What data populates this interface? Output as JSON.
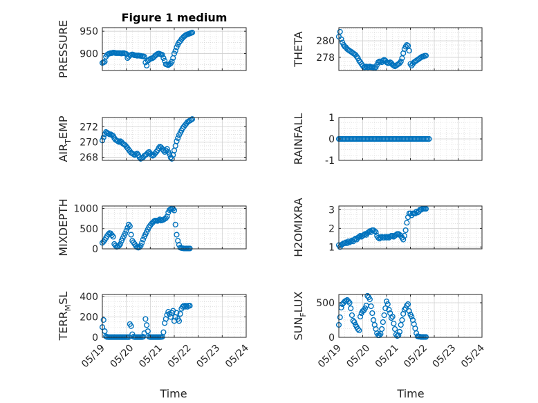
{
  "figure": {
    "title": "Figure 1 medium",
    "xlabel": "Time"
  },
  "style": {
    "marker_color": "#0072BD",
    "axis_color": "#262626",
    "grid_color": "#d0d0d0"
  },
  "x_ticks": [
    "05/19",
    "05/20",
    "05/21",
    "05/22",
    "05/23",
    "05/24"
  ],
  "chart_data": [
    {
      "type": "scatter",
      "ylabel": "PRESSURE",
      "ylim": [
        862,
        958
      ],
      "yticks": [
        900,
        950
      ],
      "x": [
        0.0,
        0.05,
        0.1,
        0.15,
        0.2,
        0.25,
        0.3,
        0.35,
        0.4,
        0.45,
        0.5,
        0.55,
        0.6,
        0.65,
        0.7,
        0.75,
        0.8,
        0.85,
        0.9,
        0.95,
        1.0,
        1.05,
        1.1,
        1.15,
        1.2,
        1.25,
        1.3,
        1.35,
        1.4,
        1.45,
        1.5,
        1.55,
        1.6,
        1.65,
        1.7,
        1.75,
        1.8,
        1.85,
        1.9,
        1.95,
        2.0,
        2.05,
        2.1,
        2.15,
        2.2,
        2.25,
        2.3,
        2.35,
        2.4,
        2.45,
        2.5,
        2.55,
        2.6,
        2.65,
        2.7,
        2.75,
        2.8,
        2.85,
        2.9,
        2.95,
        3.0,
        3.05,
        3.1,
        3.15,
        3.2,
        3.25,
        3.3,
        3.35,
        3.4,
        3.45,
        3.5,
        3.55,
        3.6,
        3.65,
        3.7,
        3.75
      ],
      "y": [
        879,
        880,
        882,
        893,
        897,
        899,
        900,
        901,
        901,
        902,
        902,
        901,
        901,
        901,
        901,
        901,
        900,
        901,
        901,
        900,
        899,
        890,
        893,
        896,
        897,
        898,
        897,
        896,
        896,
        895,
        896,
        895,
        895,
        894,
        894,
        893,
        880,
        873,
        884,
        886,
        888,
        889,
        890,
        892,
        895,
        897,
        899,
        900,
        899,
        898,
        897,
        890,
        884,
        876,
        875,
        874,
        876,
        878,
        882,
        890,
        900,
        906,
        914,
        920,
        925,
        928,
        932,
        935,
        938,
        940,
        942,
        943,
        944,
        945,
        946,
        947
      ]
    },
    {
      "type": "scatter",
      "ylabel": "THETA",
      "ylim": [
        276.4,
        281.6
      ],
      "yticks": [
        278,
        280
      ],
      "x": [
        0.0,
        0.05,
        0.1,
        0.15,
        0.2,
        0.25,
        0.3,
        0.35,
        0.4,
        0.45,
        0.5,
        0.55,
        0.6,
        0.65,
        0.7,
        0.75,
        0.8,
        0.85,
        0.9,
        0.95,
        1.0,
        1.05,
        1.1,
        1.15,
        1.2,
        1.25,
        1.3,
        1.35,
        1.4,
        1.45,
        1.5,
        1.55,
        1.6,
        1.65,
        1.7,
        1.75,
        1.8,
        1.85,
        1.9,
        1.95,
        2.0,
        2.05,
        2.1,
        2.15,
        2.2,
        2.25,
        2.3,
        2.35,
        2.4,
        2.45,
        2.5,
        2.55,
        2.6,
        2.65,
        2.7,
        2.75,
        2.8,
        2.85,
        2.9,
        2.95,
        3.0,
        3.05,
        3.1,
        3.15,
        3.2,
        3.25,
        3.3,
        3.35,
        3.4,
        3.45,
        3.5,
        3.55,
        3.6,
        3.65
      ],
      "y": [
        280.5,
        281.1,
        280.2,
        279.8,
        279.5,
        279.3,
        279.2,
        279.0,
        278.9,
        278.8,
        278.7,
        278.6,
        278.5,
        278.4,
        278.3,
        278.1,
        277.9,
        277.6,
        277.4,
        277.2,
        277.0,
        276.8,
        276.8,
        276.9,
        276.8,
        276.8,
        276.9,
        276.8,
        276.8,
        276.8,
        276.7,
        276.8,
        277.1,
        277.4,
        277.5,
        277.5,
        277.4,
        277.6,
        277.7,
        277.6,
        277.4,
        277.3,
        277.3,
        277.4,
        277.3,
        277.1,
        277.0,
        276.9,
        277.0,
        277.1,
        277.2,
        277.3,
        277.5,
        277.9,
        278.5,
        279.0,
        279.3,
        279.5,
        279.4,
        278.8,
        277.2,
        277.0,
        277.2,
        277.4,
        277.5,
        277.6,
        277.7,
        277.8,
        277.9,
        278.0,
        278.1,
        278.1,
        278.2,
        278.2
      ]
    },
    {
      "type": "scatter",
      "ylabel": "AIR_TEMP",
      "ylim": [
        267.6,
        273.2
      ],
      "yticks": [
        268,
        270,
        272
      ],
      "x": [
        0.0,
        0.05,
        0.1,
        0.15,
        0.2,
        0.25,
        0.3,
        0.35,
        0.4,
        0.45,
        0.5,
        0.55,
        0.6,
        0.65,
        0.7,
        0.75,
        0.8,
        0.85,
        0.9,
        0.95,
        1.0,
        1.05,
        1.1,
        1.15,
        1.2,
        1.25,
        1.3,
        1.35,
        1.4,
        1.45,
        1.5,
        1.55,
        1.6,
        1.65,
        1.7,
        1.75,
        1.8,
        1.85,
        1.9,
        1.95,
        2.0,
        2.05,
        2.1,
        2.15,
        2.2,
        2.25,
        2.3,
        2.35,
        2.4,
        2.45,
        2.5,
        2.55,
        2.6,
        2.65,
        2.7,
        2.75,
        2.8,
        2.85,
        2.9,
        2.95,
        3.0,
        3.05,
        3.1,
        3.15,
        3.2,
        3.25,
        3.3,
        3.35,
        3.4,
        3.45,
        3.5,
        3.55,
        3.6,
        3.65,
        3.7,
        3.75
      ],
      "y": [
        270.2,
        270.6,
        271.0,
        271.3,
        271.2,
        271.1,
        271.0,
        271.0,
        270.9,
        270.8,
        270.5,
        270.3,
        270.2,
        270.1,
        270.0,
        270.1,
        270.0,
        269.8,
        269.7,
        269.6,
        269.4,
        269.2,
        269.0,
        268.8,
        268.6,
        268.5,
        268.4,
        268.3,
        268.4,
        268.5,
        268.3,
        268.0,
        267.8,
        267.9,
        268.0,
        268.2,
        268.3,
        268.4,
        268.6,
        268.7,
        268.5,
        268.3,
        268.2,
        268.3,
        268.5,
        268.7,
        268.9,
        269.2,
        269.4,
        269.3,
        269.1,
        268.9,
        268.7,
        268.9,
        269.1,
        268.7,
        268.4,
        268.0,
        267.8,
        268.3,
        268.9,
        269.5,
        270.1,
        270.5,
        270.9,
        271.2,
        271.5,
        271.8,
        272.0,
        272.2,
        272.4,
        272.6,
        272.7,
        272.8,
        272.9,
        273.0
      ]
    },
    {
      "type": "scatter",
      "ylabel": "RAINFALL",
      "ylim": [
        -1,
        1
      ],
      "yticks": [
        -1,
        0,
        1
      ],
      "x": [
        0.0,
        0.06,
        0.12,
        0.18,
        0.24,
        0.3,
        0.36,
        0.42,
        0.48,
        0.54,
        0.6,
        0.66,
        0.72,
        0.78,
        0.84,
        0.9,
        0.96,
        1.02,
        1.08,
        1.14,
        1.2,
        1.26,
        1.32,
        1.38,
        1.44,
        1.5,
        1.56,
        1.62,
        1.68,
        1.74,
        1.8,
        1.86,
        1.92,
        1.98,
        2.04,
        2.1,
        2.16,
        2.22,
        2.28,
        2.34,
        2.4,
        2.46,
        2.52,
        2.58,
        2.64,
        2.7,
        2.76,
        2.82,
        2.88,
        2.94,
        3.0,
        3.06,
        3.12,
        3.18,
        3.24,
        3.3,
        3.36,
        3.42,
        3.48,
        3.54,
        3.6,
        3.66,
        3.72,
        3.78
      ],
      "y": [
        0,
        0,
        0,
        0,
        0,
        0,
        0,
        0,
        0,
        0,
        0,
        0,
        0,
        0,
        0,
        0,
        0,
        0,
        0,
        0,
        0,
        0,
        0,
        0,
        0,
        0,
        0,
        0,
        0,
        0,
        0,
        0,
        0,
        0,
        0,
        0,
        0,
        0,
        0,
        0,
        0,
        0,
        0,
        0,
        0,
        0,
        0,
        0,
        0,
        0,
        0,
        0,
        0,
        0,
        0,
        0,
        0,
        0,
        0,
        0,
        0,
        0,
        0,
        0
      ]
    },
    {
      "type": "scatter",
      "ylabel": "MIXDEPTH",
      "ylim": [
        0,
        1060
      ],
      "yticks": [
        0,
        500,
        1000
      ],
      "x": [
        0.0,
        0.05,
        0.1,
        0.15,
        0.2,
        0.25,
        0.3,
        0.35,
        0.4,
        0.45,
        0.5,
        0.55,
        0.6,
        0.65,
        0.7,
        0.75,
        0.8,
        0.85,
        0.9,
        0.95,
        1.0,
        1.05,
        1.1,
        1.15,
        1.2,
        1.25,
        1.3,
        1.35,
        1.4,
        1.45,
        1.5,
        1.55,
        1.6,
        1.65,
        1.7,
        1.75,
        1.8,
        1.85,
        1.9,
        1.95,
        2.0,
        2.05,
        2.1,
        2.15,
        2.2,
        2.25,
        2.3,
        2.35,
        2.4,
        2.45,
        2.5,
        2.55,
        2.6,
        2.65,
        2.7,
        2.75,
        2.8,
        2.85,
        2.9,
        2.95,
        3.0,
        3.05,
        3.1,
        3.15,
        3.2,
        3.25,
        3.3,
        3.35,
        3.4,
        3.45,
        3.5,
        3.55,
        3.6,
        3.65
      ],
      "y": [
        150,
        180,
        220,
        270,
        320,
        360,
        390,
        380,
        340,
        300,
        120,
        80,
        50,
        60,
        80,
        120,
        200,
        260,
        320,
        380,
        450,
        520,
        600,
        560,
        350,
        200,
        160,
        120,
        70,
        40,
        30,
        40,
        80,
        150,
        230,
        300,
        360,
        420,
        480,
        540,
        580,
        620,
        650,
        680,
        700,
        700,
        690,
        710,
        730,
        700,
        710,
        720,
        740,
        760,
        800,
        900,
        960,
        980,
        1000,
        990,
        950,
        600,
        350,
        200,
        100,
        30,
        20,
        15,
        10,
        10,
        10,
        10,
        10,
        10
      ]
    },
    {
      "type": "scatter",
      "ylabel": "H2OMIXRA",
      "ylim": [
        0.9,
        3.2
      ],
      "yticks": [
        1,
        2,
        3
      ],
      "x": [
        0.0,
        0.05,
        0.1,
        0.15,
        0.2,
        0.25,
        0.3,
        0.35,
        0.4,
        0.45,
        0.5,
        0.55,
        0.6,
        0.65,
        0.7,
        0.75,
        0.8,
        0.85,
        0.9,
        0.95,
        1.0,
        1.05,
        1.1,
        1.15,
        1.2,
        1.25,
        1.3,
        1.35,
        1.4,
        1.45,
        1.5,
        1.55,
        1.6,
        1.65,
        1.7,
        1.75,
        1.8,
        1.85,
        1.9,
        1.95,
        2.0,
        2.05,
        2.1,
        2.15,
        2.2,
        2.25,
        2.3,
        2.35,
        2.4,
        2.45,
        2.5,
        2.55,
        2.6,
        2.65,
        2.7,
        2.75,
        2.8,
        2.85,
        2.9,
        2.95,
        3.0,
        3.05,
        3.1,
        3.15,
        3.2,
        3.25,
        3.3,
        3.35,
        3.4,
        3.45,
        3.5,
        3.55,
        3.6,
        3.65
      ],
      "y": [
        1.1,
        1.0,
        1.1,
        1.15,
        1.2,
        1.2,
        1.25,
        1.2,
        1.3,
        1.25,
        1.3,
        1.35,
        1.3,
        1.4,
        1.45,
        1.4,
        1.5,
        1.55,
        1.6,
        1.55,
        1.6,
        1.65,
        1.7,
        1.65,
        1.75,
        1.8,
        1.85,
        1.8,
        1.9,
        1.9,
        1.85,
        1.8,
        1.6,
        1.5,
        1.45,
        1.5,
        1.55,
        1.5,
        1.5,
        1.55,
        1.5,
        1.55,
        1.5,
        1.55,
        1.6,
        1.6,
        1.55,
        1.6,
        1.65,
        1.7,
        1.7,
        1.65,
        1.6,
        1.5,
        1.4,
        1.6,
        1.9,
        2.3,
        2.6,
        2.8,
        2.8,
        2.7,
        2.8,
        2.8,
        2.8,
        2.9,
        2.85,
        2.9,
        3.0,
        3.0,
        3.05,
        3.05,
        3.05,
        3.05
      ]
    },
    {
      "type": "scatter",
      "ylabel": "TERR_MSL",
      "ylim": [
        0,
        420
      ],
      "yticks": [
        0,
        200,
        400
      ],
      "x": [
        0.0,
        0.05,
        0.1,
        0.15,
        0.2,
        0.25,
        0.3,
        0.35,
        0.4,
        0.45,
        0.5,
        0.55,
        0.6,
        0.65,
        0.7,
        0.75,
        0.8,
        0.85,
        0.9,
        0.95,
        1.0,
        1.05,
        1.1,
        1.15,
        1.2,
        1.25,
        1.3,
        1.35,
        1.4,
        1.45,
        1.5,
        1.55,
        1.6,
        1.65,
        1.7,
        1.75,
        1.8,
        1.85,
        1.9,
        1.95,
        2.0,
        2.05,
        2.1,
        2.15,
        2.2,
        2.25,
        2.3,
        2.35,
        2.4,
        2.45,
        2.5,
        2.55,
        2.6,
        2.65,
        2.7,
        2.75,
        2.8,
        2.85,
        2.9,
        2.95,
        3.0,
        3.05,
        3.1,
        3.15,
        3.2,
        3.25,
        3.3,
        3.35,
        3.4,
        3.45,
        3.5,
        3.55,
        3.6,
        3.65
      ],
      "y": [
        100,
        170,
        60,
        10,
        3,
        2,
        2,
        2,
        2,
        2,
        2,
        2,
        2,
        2,
        2,
        2,
        2,
        2,
        2,
        2,
        2,
        2,
        2,
        130,
        110,
        30,
        5,
        2,
        2,
        2,
        2,
        2,
        2,
        2,
        5,
        40,
        180,
        120,
        60,
        5,
        2,
        2,
        2,
        2,
        2,
        2,
        2,
        2,
        2,
        3,
        5,
        50,
        140,
        180,
        220,
        250,
        230,
        200,
        240,
        260,
        160,
        200,
        240,
        180,
        160,
        230,
        280,
        300,
        310,
        300,
        310,
        300,
        310,
        310
      ]
    },
    {
      "type": "scatter",
      "ylabel": "SUN_FLUX",
      "ylim": [
        0,
        620
      ],
      "yticks": [
        0,
        500
      ],
      "x": [
        0.0,
        0.05,
        0.1,
        0.15,
        0.2,
        0.25,
        0.3,
        0.35,
        0.4,
        0.45,
        0.5,
        0.55,
        0.6,
        0.65,
        0.7,
        0.75,
        0.8,
        0.85,
        0.9,
        0.95,
        1.0,
        1.05,
        1.1,
        1.15,
        1.2,
        1.25,
        1.3,
        1.35,
        1.4,
        1.45,
        1.5,
        1.55,
        1.6,
        1.65,
        1.7,
        1.75,
        1.8,
        1.85,
        1.9,
        1.95,
        2.0,
        2.05,
        2.1,
        2.15,
        2.2,
        2.25,
        2.3,
        2.35,
        2.4,
        2.45,
        2.5,
        2.55,
        2.6,
        2.65,
        2.7,
        2.75,
        2.8,
        2.85,
        2.9,
        2.95,
        3.0,
        3.05,
        3.1,
        3.15,
        3.2,
        3.25,
        3.3,
        3.35,
        3.4,
        3.45,
        3.5,
        3.55,
        3.6,
        3.65
      ],
      "y": [
        180,
        290,
        430,
        480,
        500,
        520,
        530,
        540,
        520,
        500,
        420,
        320,
        240,
        220,
        180,
        150,
        120,
        100,
        300,
        350,
        380,
        390,
        420,
        460,
        600,
        580,
        550,
        450,
        350,
        250,
        180,
        120,
        60,
        30,
        30,
        50,
        120,
        220,
        320,
        420,
        520,
        480,
        400,
        350,
        280,
        300,
        200,
        120,
        40,
        20,
        30,
        80,
        180,
        250,
        340,
        400,
        420,
        460,
        480,
        380,
        330,
        300,
        250,
        190,
        130,
        60,
        15,
        10,
        8,
        5,
        5,
        5,
        5,
        5
      ]
    }
  ]
}
